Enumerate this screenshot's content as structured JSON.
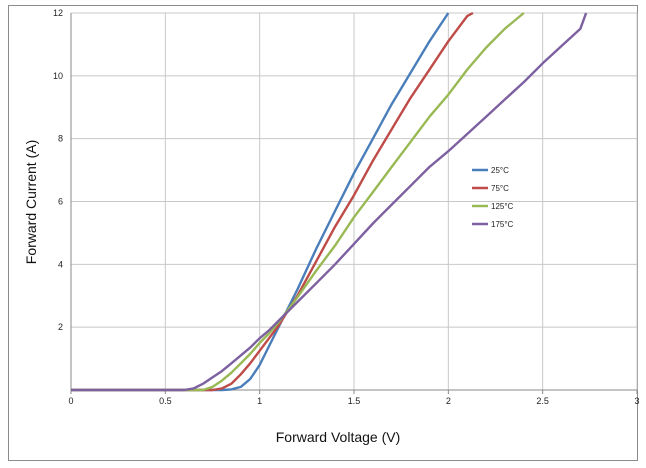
{
  "chart_data": {
    "type": "line",
    "xlabel": "Forward  Voltage (V)",
    "ylabel": "Forward Current (A)",
    "xlim": [
      0,
      3
    ],
    "ylim": [
      0,
      12
    ],
    "x_ticks": [
      "0",
      "0.5",
      "1",
      "1.5",
      "2",
      "2.5",
      "3"
    ],
    "y_ticks": [
      "",
      "2",
      "4",
      "6",
      "8",
      "10",
      "12"
    ],
    "grid": true,
    "legend_position": "right",
    "series": [
      {
        "name": "25°C",
        "color": "#4a7ebb",
        "points": [
          [
            0,
            0
          ],
          [
            0.8,
            0
          ],
          [
            0.85,
            0.02
          ],
          [
            0.9,
            0.1
          ],
          [
            0.95,
            0.35
          ],
          [
            1.0,
            0.8
          ],
          [
            1.05,
            1.4
          ],
          [
            1.1,
            2.0
          ],
          [
            1.2,
            3.2
          ],
          [
            1.3,
            4.5
          ],
          [
            1.4,
            5.7
          ],
          [
            1.5,
            6.9
          ],
          [
            1.6,
            8.0
          ],
          [
            1.7,
            9.1
          ],
          [
            1.8,
            10.1
          ],
          [
            1.9,
            11.1
          ],
          [
            2.0,
            12.0
          ]
        ]
      },
      {
        "name": "75°C",
        "color": "#be4b48",
        "points": [
          [
            0,
            0
          ],
          [
            0.75,
            0
          ],
          [
            0.8,
            0.05
          ],
          [
            0.85,
            0.2
          ],
          [
            0.9,
            0.5
          ],
          [
            0.95,
            0.85
          ],
          [
            1.0,
            1.25
          ],
          [
            1.05,
            1.65
          ],
          [
            1.1,
            2.05
          ],
          [
            1.2,
            3.0
          ],
          [
            1.3,
            4.1
          ],
          [
            1.4,
            5.2
          ],
          [
            1.5,
            6.2
          ],
          [
            1.6,
            7.3
          ],
          [
            1.7,
            8.3
          ],
          [
            1.8,
            9.3
          ],
          [
            1.9,
            10.2
          ],
          [
            2.0,
            11.1
          ],
          [
            2.1,
            11.9
          ],
          [
            2.13,
            12.0
          ]
        ]
      },
      {
        "name": "125°C",
        "color": "#98b954",
        "points": [
          [
            0,
            0
          ],
          [
            0.7,
            0
          ],
          [
            0.75,
            0.1
          ],
          [
            0.8,
            0.3
          ],
          [
            0.85,
            0.55
          ],
          [
            0.9,
            0.85
          ],
          [
            0.95,
            1.15
          ],
          [
            1.0,
            1.5
          ],
          [
            1.05,
            1.8
          ],
          [
            1.1,
            2.15
          ],
          [
            1.2,
            2.95
          ],
          [
            1.3,
            3.8
          ],
          [
            1.4,
            4.6
          ],
          [
            1.5,
            5.5
          ],
          [
            1.6,
            6.3
          ],
          [
            1.7,
            7.1
          ],
          [
            1.8,
            7.9
          ],
          [
            1.9,
            8.7
          ],
          [
            2.0,
            9.4
          ],
          [
            2.1,
            10.2
          ],
          [
            2.2,
            10.9
          ],
          [
            2.3,
            11.5
          ],
          [
            2.4,
            12.0
          ]
        ]
      },
      {
        "name": "175°C",
        "color": "#7d60a0",
        "points": [
          [
            0,
            0
          ],
          [
            0.6,
            0
          ],
          [
            0.65,
            0.05
          ],
          [
            0.7,
            0.2
          ],
          [
            0.75,
            0.4
          ],
          [
            0.8,
            0.6
          ],
          [
            0.85,
            0.85
          ],
          [
            0.9,
            1.1
          ],
          [
            0.95,
            1.35
          ],
          [
            1.0,
            1.65
          ],
          [
            1.05,
            1.9
          ],
          [
            1.1,
            2.2
          ],
          [
            1.2,
            2.8
          ],
          [
            1.3,
            3.4
          ],
          [
            1.4,
            4.0
          ],
          [
            1.5,
            4.65
          ],
          [
            1.6,
            5.3
          ],
          [
            1.7,
            5.9
          ],
          [
            1.8,
            6.5
          ],
          [
            1.9,
            7.1
          ],
          [
            2.0,
            7.6
          ],
          [
            2.1,
            8.15
          ],
          [
            2.2,
            8.7
          ],
          [
            2.3,
            9.25
          ],
          [
            2.4,
            9.8
          ],
          [
            2.5,
            10.4
          ],
          [
            2.6,
            10.95
          ],
          [
            2.7,
            11.5
          ],
          [
            2.73,
            12.0
          ]
        ]
      }
    ]
  }
}
